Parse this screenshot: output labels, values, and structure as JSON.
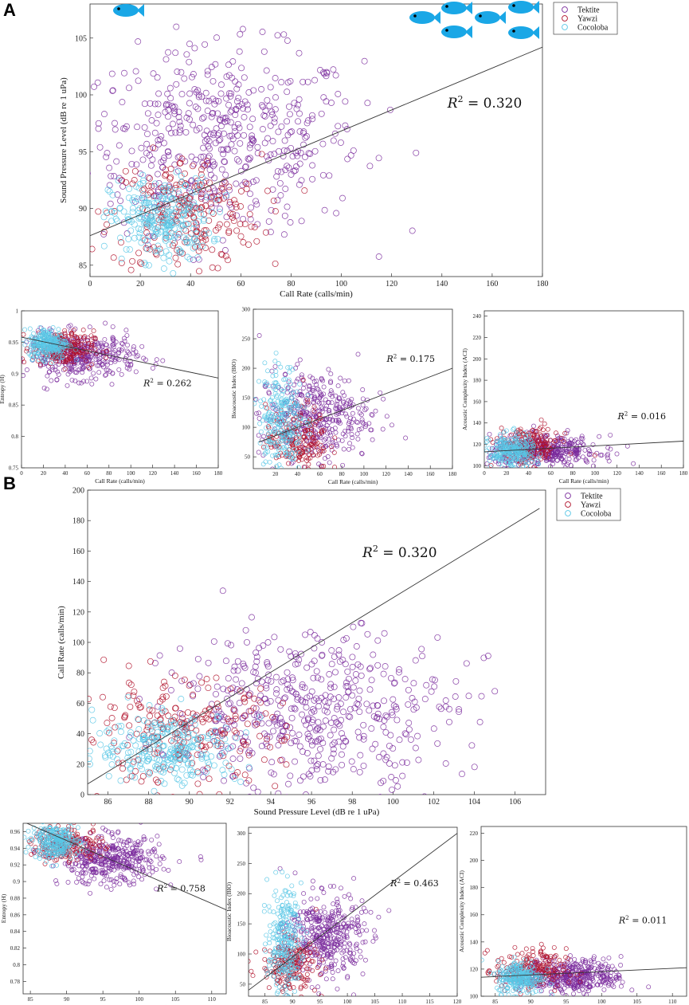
{
  "panels": {
    "a": "A",
    "b": "B"
  },
  "legend": [
    "Tektite",
    "Yawzi",
    "Cocoloba"
  ],
  "colors": {
    "Tektite": "#7a2a9c",
    "Yawzi": "#b0112a",
    "Cocoloba": "#58c6e6",
    "fish": "#1aa7e6",
    "line": "#333333"
  },
  "icons": [
    "fish-icon"
  ],
  "chart_data": [
    {
      "id": "A_main",
      "type": "scatter",
      "title": "",
      "xlabel": "Call Rate (calls/min)",
      "ylabel": "Sound Pressure Level (dB re 1 uPa)",
      "xlim": [
        0,
        180
      ],
      "ylim": [
        84,
        108
      ],
      "xticks": [
        0,
        20,
        40,
        60,
        80,
        100,
        120,
        140,
        160,
        180
      ],
      "yticks": [
        85,
        90,
        95,
        100,
        105
      ],
      "fit": [
        [
          0,
          87.6
        ],
        [
          180,
          104.2
        ]
      ],
      "r2": "= 0.320",
      "legend": true,
      "series": [
        {
          "name": "Tektite",
          "cx": 52,
          "cy": 96,
          "sx": 28,
          "sy": 4,
          "n": 520
        },
        {
          "name": "Yawzi",
          "cx": 38,
          "cy": 89.5,
          "sx": 15,
          "sy": 2.6,
          "n": 230
        },
        {
          "name": "Cocoloba",
          "cx": 28,
          "cy": 89,
          "sx": 10,
          "sy": 1.8,
          "n": 260
        }
      ]
    },
    {
      "id": "A_entropy",
      "type": "scatter",
      "xlabel": "Call Rate (calls/min)",
      "ylabel": "Entropy (H)",
      "xlim": [
        0,
        180
      ],
      "ylim": [
        0.75,
        1.0
      ],
      "xticks": [
        0,
        20,
        40,
        60,
        80,
        100,
        120,
        140,
        160,
        180
      ],
      "yticks": [
        0.75,
        0.8,
        0.85,
        0.9,
        0.95,
        1
      ],
      "fit": [
        [
          0,
          0.958
        ],
        [
          180,
          0.893
        ]
      ],
      "r2": "= 0.262",
      "series": [
        {
          "name": "Tektite",
          "cx": 55,
          "cy": 0.928,
          "sx": 25,
          "sy": 0.018,
          "n": 400
        },
        {
          "name": "Yawzi",
          "cx": 38,
          "cy": 0.94,
          "sx": 14,
          "sy": 0.014,
          "n": 200
        },
        {
          "name": "Cocoloba",
          "cx": 25,
          "cy": 0.948,
          "sx": 9,
          "sy": 0.012,
          "n": 250
        }
      ]
    },
    {
      "id": "A_bio",
      "type": "scatter",
      "xlabel": "Call Rate (calls/min)",
      "ylabel": "Bioacoustic Index (BIO)",
      "xlim": [
        0,
        180
      ],
      "ylim": [
        30,
        300
      ],
      "xticks": [
        20,
        40,
        60,
        80,
        100,
        120,
        140,
        160,
        180
      ],
      "yticks": [
        50,
        100,
        150,
        200,
        250,
        300
      ],
      "fit": [
        [
          5,
          75
        ],
        [
          180,
          200
        ]
      ],
      "r2": "= 0.175",
      "series": [
        {
          "name": "Tektite",
          "cx": 55,
          "cy": 120,
          "sx": 25,
          "sy": 38,
          "n": 400
        },
        {
          "name": "Yawzi",
          "cx": 40,
          "cy": 80,
          "sx": 14,
          "sy": 28,
          "n": 200
        },
        {
          "name": "Cocoloba",
          "cx": 25,
          "cy": 115,
          "sx": 10,
          "sy": 45,
          "n": 250
        }
      ]
    },
    {
      "id": "A_aci",
      "type": "scatter",
      "xlabel": "Call Rate (calls/min)",
      "ylabel": "Acoustic Complexity Index (ACI)",
      "xlim": [
        0,
        180
      ],
      "ylim": [
        98,
        245
      ],
      "xticks": [
        0,
        20,
        40,
        60,
        80,
        100,
        120,
        140,
        160,
        180
      ],
      "yticks": [
        100,
        120,
        140,
        160,
        180,
        200,
        220,
        240
      ],
      "fit": [
        [
          0,
          113
        ],
        [
          180,
          123
        ]
      ],
      "r2": "= 0.016",
      "series": [
        {
          "name": "Tektite",
          "cx": 55,
          "cy": 114,
          "sx": 25,
          "sy": 7,
          "n": 400
        },
        {
          "name": "Yawzi",
          "cx": 40,
          "cy": 118,
          "sx": 14,
          "sy": 9,
          "n": 200
        },
        {
          "name": "Cocoloba",
          "cx": 25,
          "cy": 113,
          "sx": 10,
          "sy": 8,
          "n": 250
        }
      ]
    },
    {
      "id": "B_main",
      "type": "scatter",
      "xlabel": "Sound Pressure Level (dB re 1 uPa)",
      "ylabel": "Call Rate (calls/min)",
      "xlim": [
        85,
        107.5
      ],
      "ylim": [
        0,
        200
      ],
      "xticks": [
        86,
        88,
        90,
        92,
        94,
        96,
        98,
        100,
        102,
        104,
        106
      ],
      "yticks": [
        0,
        20,
        40,
        60,
        80,
        100,
        120,
        140,
        160,
        180,
        200
      ],
      "fit": [
        [
          85,
          7
        ],
        [
          107.2,
          188
        ]
      ],
      "r2": "= 0.320",
      "legend": true,
      "series": [
        {
          "name": "Tektite",
          "cx": 96,
          "cy": 55,
          "sx": 3.5,
          "sy": 26,
          "n": 520
        },
        {
          "name": "Yawzi",
          "cx": 89.5,
          "cy": 40,
          "sx": 2.5,
          "sy": 17,
          "n": 230
        },
        {
          "name": "Cocoloba",
          "cx": 89,
          "cy": 30,
          "sx": 1.8,
          "sy": 12,
          "n": 260
        }
      ]
    },
    {
      "id": "B_entropy",
      "type": "scatter",
      "xlabel": "Sound Pressure Level (dB re 1 uPa)",
      "ylabel": "Entropy (H)",
      "xlim": [
        84,
        112
      ],
      "ylim": [
        0.765,
        0.97
      ],
      "xticks": [
        85,
        90,
        95,
        100,
        105,
        110
      ],
      "yticks": [
        0.78,
        0.8,
        0.82,
        0.84,
        0.86,
        0.88,
        0.9,
        0.92,
        0.94,
        0.96
      ],
      "fit": [
        [
          84,
          0.972
        ],
        [
          112,
          0.866
        ]
      ],
      "r2": "= 0.758",
      "series": [
        {
          "name": "Tektite",
          "cx": 96,
          "cy": 0.925,
          "sx": 3.5,
          "sy": 0.014,
          "n": 400
        },
        {
          "name": "Yawzi",
          "cx": 90,
          "cy": 0.945,
          "sx": 2.5,
          "sy": 0.01,
          "n": 200
        },
        {
          "name": "Cocoloba",
          "cx": 88.5,
          "cy": 0.948,
          "sx": 1.6,
          "sy": 0.01,
          "n": 250
        }
      ]
    },
    {
      "id": "B_bio",
      "type": "scatter",
      "xlabel": "Sound Pressure Level (dB re 1 uPa)",
      "ylabel": "Bioacoustic Index (BIO)",
      "xlim": [
        82,
        120
      ],
      "ylim": [
        30,
        310
      ],
      "xticks": [
        85,
        90,
        95,
        100,
        105,
        110,
        115,
        120
      ],
      "yticks": [
        50,
        100,
        150,
        200,
        250,
        300
      ],
      "fit": [
        [
          82,
          40
        ],
        [
          120,
          300
        ]
      ],
      "r2": "= 0.463",
      "series": [
        {
          "name": "Tektite",
          "cx": 96,
          "cy": 130,
          "sx": 3.5,
          "sy": 35,
          "n": 400
        },
        {
          "name": "Yawzi",
          "cx": 89.5,
          "cy": 80,
          "sx": 2.5,
          "sy": 22,
          "n": 200
        },
        {
          "name": "Cocoloba",
          "cx": 88.5,
          "cy": 120,
          "sx": 1.5,
          "sy": 45,
          "n": 250
        }
      ]
    },
    {
      "id": "B_aci",
      "type": "scatter",
      "xlabel": "Sound Pressure Level (dB re 1 uPa)",
      "ylabel": "Acoustic Complexity Index (ACI)",
      "xlim": [
        83,
        112
      ],
      "ylim": [
        100,
        225
      ],
      "xticks": [
        85,
        90,
        95,
        100,
        105,
        110
      ],
      "yticks": [
        100,
        120,
        140,
        160,
        180,
        200,
        220
      ],
      "fit": [
        [
          83,
          114
        ],
        [
          112,
          121
        ]
      ],
      "r2": "= 0.011",
      "series": [
        {
          "name": "Tektite",
          "cx": 96,
          "cy": 115,
          "sx": 3.5,
          "sy": 6,
          "n": 400
        },
        {
          "name": "Yawzi",
          "cx": 90,
          "cy": 119,
          "sx": 2.5,
          "sy": 8,
          "n": 200
        },
        {
          "name": "Cocoloba",
          "cx": 88.5,
          "cy": 114,
          "sx": 1.6,
          "sy": 6,
          "n": 250
        }
      ]
    }
  ]
}
